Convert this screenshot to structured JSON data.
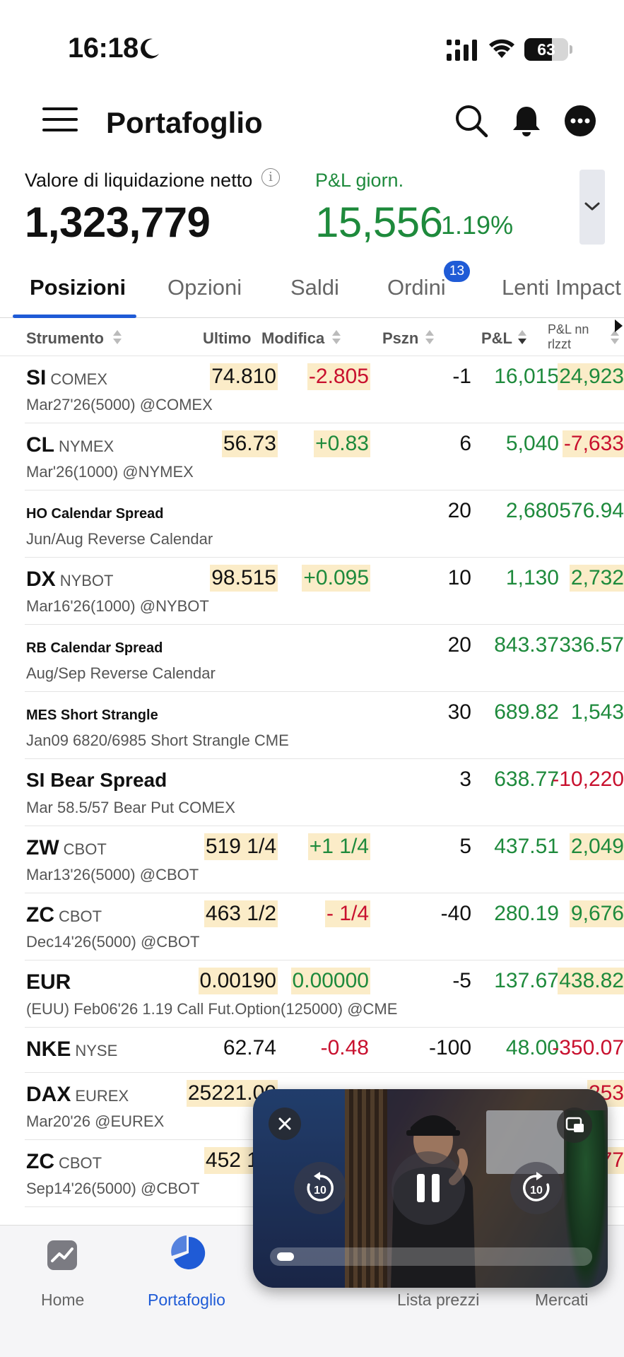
{
  "status_bar": {
    "time": "16:18",
    "battery": "63"
  },
  "header": {
    "title": "Portafoglio"
  },
  "summary": {
    "nlv_label": "Valore di liquidazione netto",
    "nlv_value": "1,323,779",
    "pnl_label": "P&L giorn.",
    "pnl_value": "15,556",
    "pnl_pct": "1.19%"
  },
  "tabs": [
    {
      "label": "Posizioni"
    },
    {
      "label": "Opzioni"
    },
    {
      "label": "Saldi"
    },
    {
      "label": "Ordini",
      "badge": "13"
    },
    {
      "label": "Lenti Impact"
    }
  ],
  "columns": {
    "instrument": "Strumento",
    "last": "Ultimo",
    "change": "Modifica",
    "position": "Pszn",
    "pnl": "P&L",
    "unrealized_1": "P&L nn",
    "unrealized_2": "rlzzt"
  },
  "rows": [
    {
      "symbol": "SI",
      "exchange": "COMEX",
      "sub": "Mar27'26(5000) @COMEX",
      "last": "74.810",
      "change": "-2.805",
      "position": "-1",
      "pnl": "16,015",
      "unrealized": "24,923"
    },
    {
      "symbol": "CL",
      "exchange": "NYMEX",
      "sub": "Mar'26(1000) @NYMEX",
      "last": "56.73",
      "change": "+0.83",
      "position": "6",
      "pnl": "5,040",
      "unrealized": "-7,633"
    },
    {
      "symbol": "HO Calendar Spread",
      "exchange": "",
      "sub": "Jun/Aug Reverse Calendar",
      "last": "",
      "change": "",
      "position": "20",
      "pnl": "2,680",
      "unrealized": "576.94"
    },
    {
      "symbol": "DX",
      "exchange": "NYBOT",
      "sub": "Mar16'26(1000) @NYBOT",
      "last": "98.515",
      "change": "+0.095",
      "position": "10",
      "pnl": "1,130",
      "unrealized": "2,732"
    },
    {
      "symbol": "RB Calendar Spread",
      "exchange": "",
      "sub": "Aug/Sep Reverse Calendar",
      "last": "",
      "change": "",
      "position": "20",
      "pnl": "843.37",
      "unrealized": "336.57"
    },
    {
      "symbol": "MES Short Strangle",
      "exchange": "",
      "sub": "Jan09 6820/6985 Short Strangle CME",
      "last": "",
      "change": "",
      "position": "30",
      "pnl": "689.82",
      "unrealized": "1,543"
    },
    {
      "symbol": "SI Bear Spread",
      "exchange": "",
      "sub": "Mar 58.5/57 Bear Put COMEX",
      "last": "",
      "change": "",
      "position": "3",
      "pnl": "638.77",
      "unrealized": "-10,220"
    },
    {
      "symbol": "ZW",
      "exchange": "CBOT",
      "sub": "Mar13'26(5000) @CBOT",
      "last": "519 1/4",
      "change": "+1 1/4",
      "position": "5",
      "pnl": "437.51",
      "unrealized": "2,049"
    },
    {
      "symbol": "ZC",
      "exchange": "CBOT",
      "sub": "Dec14'26(5000) @CBOT",
      "last": "463 1/2",
      "change": "- 1/4",
      "position": "-40",
      "pnl": "280.19",
      "unrealized": "9,676"
    },
    {
      "symbol": "EUR",
      "exchange": "",
      "sub": "(EUU) Feb06'26 1.19 Call Fut.Option(125000) @CME",
      "last": "0.00190",
      "change": "0.00000",
      "position": "-5",
      "pnl": "137.67",
      "unrealized": "438.82"
    },
    {
      "symbol": "NKE",
      "exchange": "NYSE",
      "sub": "",
      "last": "62.74",
      "change": "-0.48",
      "position": "-100",
      "pnl": "48.00",
      "unrealized": "-350.07"
    },
    {
      "symbol": "DAX",
      "exchange": "EUREX",
      "sub": "Mar20'26 @EUREX",
      "last": "25221.00",
      "change": "",
      "position": "",
      "pnl": "",
      "unrealized": "253"
    },
    {
      "symbol": "ZC",
      "exchange": "CBOT",
      "sub": "Sep14'26(5000) @CBOT",
      "last": "452 1/2",
      "change": "",
      "position": "",
      "pnl": "",
      "unrealized": "77"
    }
  ],
  "bottom_nav": [
    {
      "label": "Home",
      "icon": "chart-icon"
    },
    {
      "label": "Portafoglio",
      "icon": "pie-chart-icon",
      "active": true
    },
    {
      "label": "Lista prezzi",
      "icon": "list-icon"
    },
    {
      "label": "Mercati",
      "icon": "globe-icon"
    }
  ],
  "player": {
    "skip_back": "10",
    "skip_forward": "10",
    "progress": 0.05
  },
  "colors": {
    "accent": "#1f5bd6",
    "positive": "#1e8a3c",
    "negative": "#c8102e",
    "highlight": "#fbecc8"
  }
}
